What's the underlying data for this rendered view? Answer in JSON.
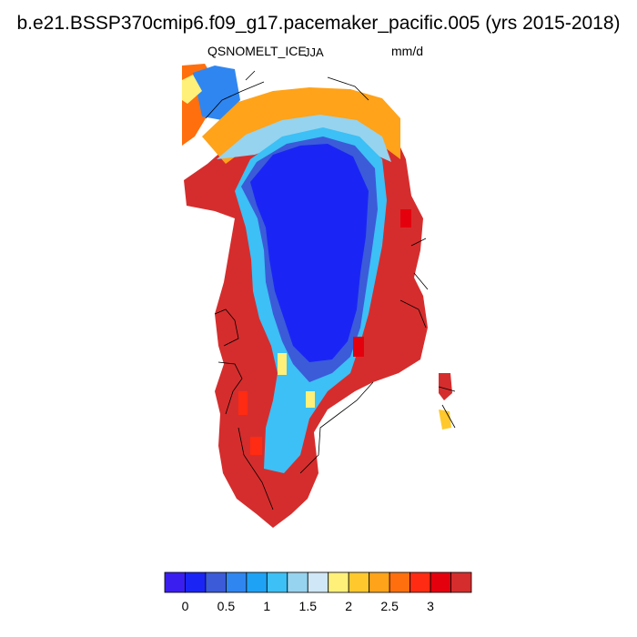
{
  "title": "b.e21.BSSP370cmip6.f09_g17.pacemaker_pacific.005 (yrs 2015-2018)",
  "variable": "QSNOMELT_ICE",
  "season": "JJA",
  "units": "mm/d",
  "colorbar": {
    "colors": [
      "#3a1ef0",
      "#1a25f5",
      "#3b5bd9",
      "#2f86f0",
      "#1ea2f5",
      "#3cc0f5",
      "#96d3ef",
      "#cfe7f6",
      "#fff07a",
      "#ffc82d",
      "#ffa31a",
      "#ff6f0d",
      "#ff2b12",
      "#e5000d",
      "#d52d2d"
    ],
    "tick_labels": [
      "0",
      "0.5",
      "1",
      "1.5",
      "2",
      "2.5",
      "3"
    ],
    "tick_values": [
      0,
      0.5,
      1,
      1.5,
      2,
      2.5,
      3
    ]
  },
  "map": {
    "region": "Greenland",
    "field": "QSNOMELT_ICE JJA mean",
    "interior_value": 0.0,
    "margin_value": 3.5,
    "edge_band_values": [
      0.5,
      1.0,
      1.5,
      2.0,
      2.5
    ]
  }
}
